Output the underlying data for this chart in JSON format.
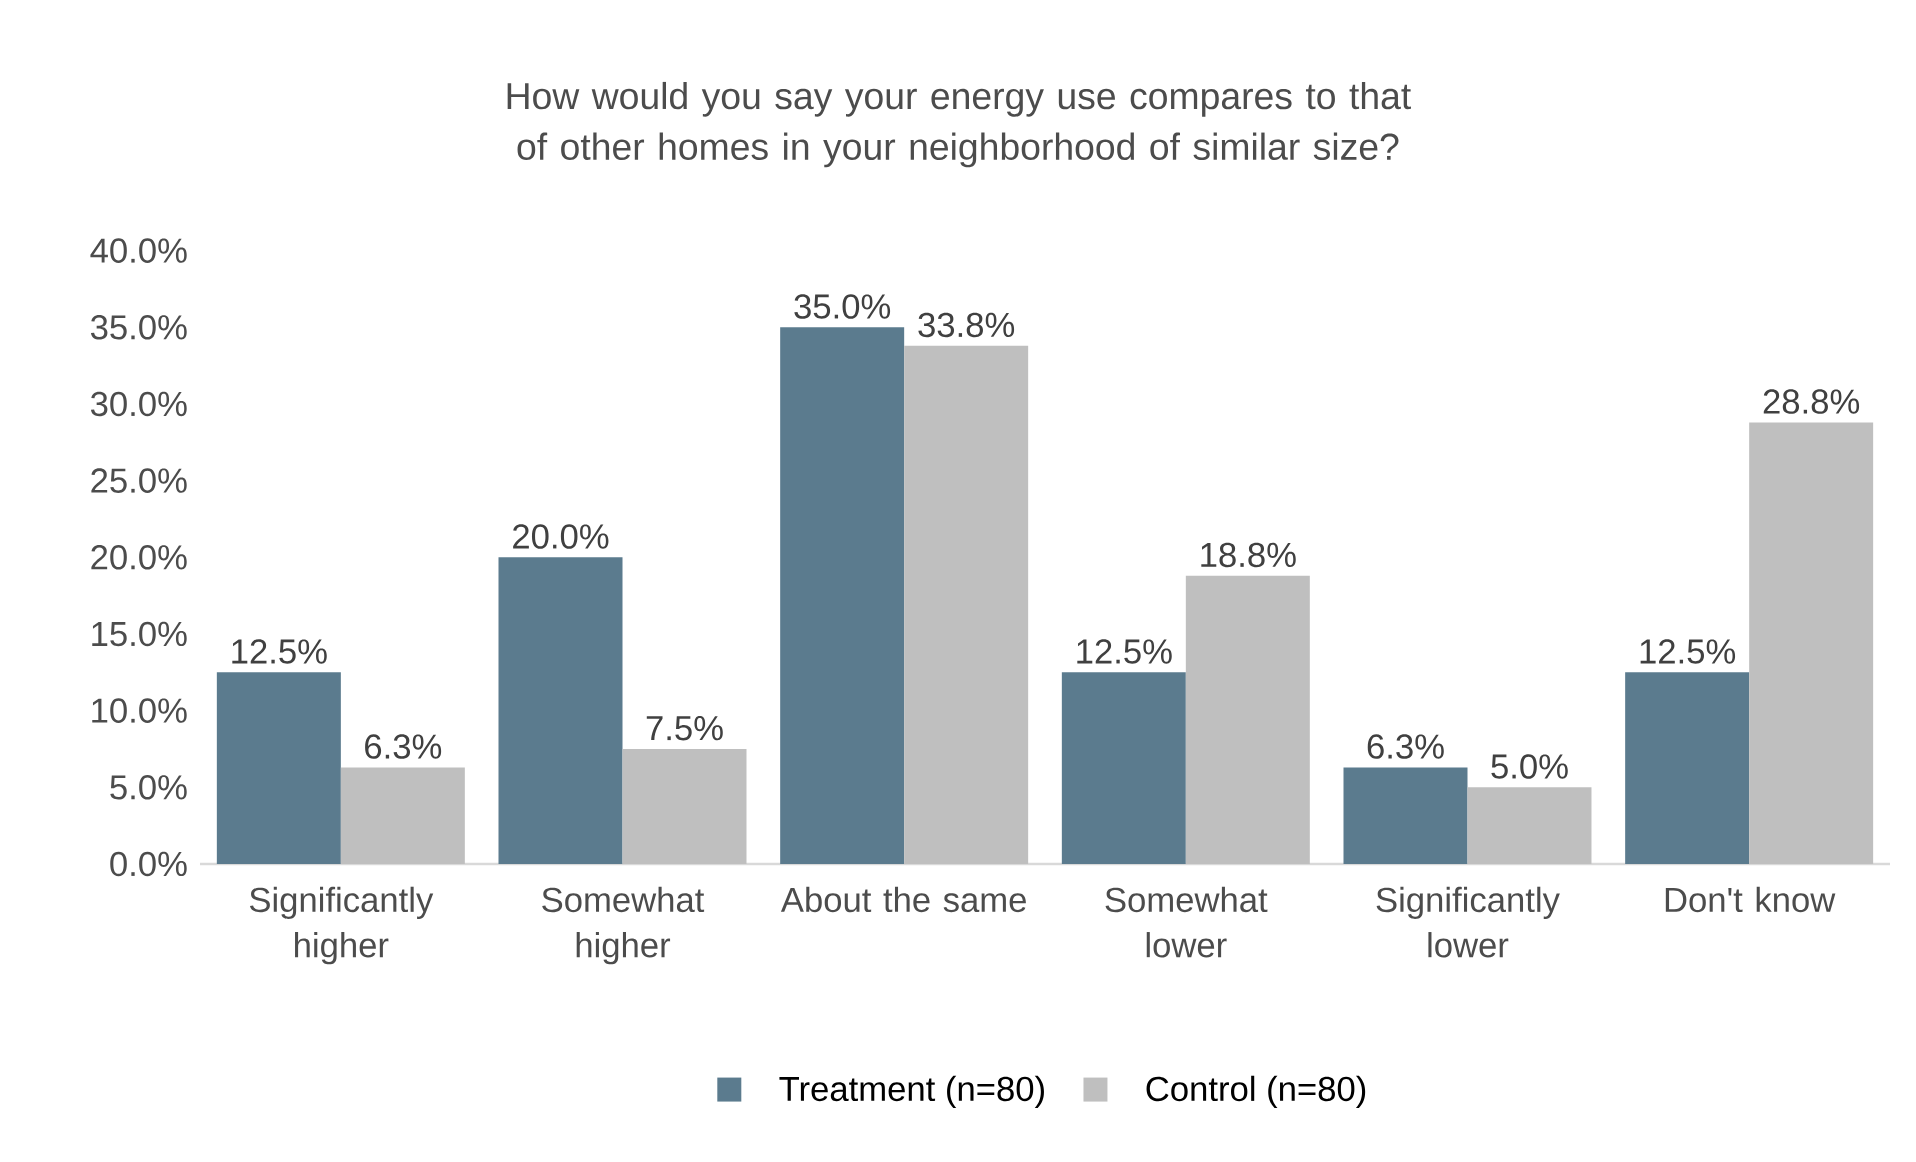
{
  "chart_data": {
    "type": "bar",
    "title": "How would you say your energy use compares to that of other homes in your neighborhood of similar size?",
    "categories": [
      "Significantly higher",
      "Somewhat higher",
      "About the same",
      "Somewhat lower",
      "Significantly lower",
      "Don't know"
    ],
    "series": [
      {
        "name": "Treatment (n=80)",
        "color": "#5b7b8e",
        "values": [
          12.5,
          20.0,
          35.0,
          12.5,
          6.3,
          12.5
        ],
        "value_labels": [
          "12.5%",
          "20.0%",
          "35.0%",
          "12.5%",
          "6.3%",
          "12.5%"
        ]
      },
      {
        "name": "Control (n=80)",
        "color": "#bfbfbf",
        "values": [
          6.3,
          7.5,
          33.8,
          18.8,
          5.0,
          28.8
        ],
        "value_labels": [
          "6.3%",
          "7.5%",
          "33.8%",
          "18.8%",
          "5.0%",
          "28.8%"
        ]
      }
    ],
    "ylim": [
      0,
      40
    ],
    "yticks": [
      {
        "value": 0,
        "label": "0.0%"
      },
      {
        "value": 5,
        "label": "5.0%"
      },
      {
        "value": 10,
        "label": "10.0%"
      },
      {
        "value": 15,
        "label": "15.0%"
      },
      {
        "value": 20,
        "label": "20.0%"
      },
      {
        "value": 25,
        "label": "25.0%"
      },
      {
        "value": 30,
        "label": "30.0%"
      },
      {
        "value": 35,
        "label": "35.0%"
      },
      {
        "value": 40,
        "label": "40.0%"
      }
    ],
    "grid": false,
    "legend": "bottom"
  }
}
